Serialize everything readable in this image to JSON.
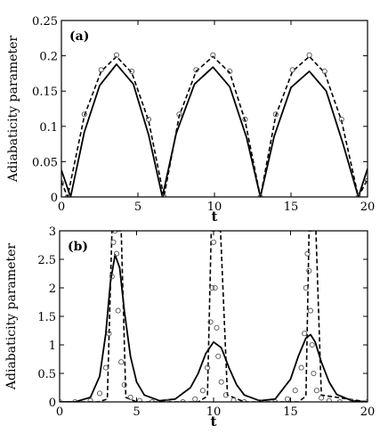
{
  "chart_data": [
    {
      "type": "line",
      "panel_label": "(a)",
      "xlabel": "t",
      "ylabel": "Adiabaticity parameter",
      "xlim": [
        0,
        20
      ],
      "ylim": [
        0,
        0.25
      ],
      "xticks": [
        0,
        5,
        10,
        15,
        20
      ],
      "yticks": [
        0,
        0.05,
        0.1,
        0.15,
        0.2,
        0.25
      ],
      "ytick_labels": [
        "0",
        "0.05",
        "0.1",
        "0.15",
        "0.2",
        "0.25"
      ],
      "grid": false,
      "series": [
        {
          "style": "solid",
          "x": [
            0,
            0.6,
            1.5,
            2.5,
            3.6,
            4.7,
            5.7,
            6.6,
            7.5,
            8.7,
            9.9,
            11.0,
            12.1,
            13.0,
            13.9,
            15.0,
            16.2,
            17.3,
            18.4,
            19.4,
            20.0
          ],
          "y": [
            0.038,
            0.0,
            0.092,
            0.158,
            0.188,
            0.16,
            0.088,
            0.0,
            0.09,
            0.16,
            0.184,
            0.156,
            0.084,
            0.0,
            0.086,
            0.155,
            0.178,
            0.15,
            0.075,
            0.0,
            0.04
          ]
        },
        {
          "style": "dashed",
          "x": [
            0,
            0.4,
            1.5,
            2.6,
            3.6,
            4.6,
            5.7,
            6.7,
            7.7,
            8.8,
            9.9,
            11.0,
            12.0,
            13.0,
            14.0,
            15.1,
            16.2,
            17.2,
            18.3,
            19.4,
            20.0
          ],
          "y": [
            0.022,
            0.0,
            0.115,
            0.178,
            0.199,
            0.176,
            0.108,
            0.0,
            0.115,
            0.178,
            0.199,
            0.176,
            0.108,
            0.0,
            0.115,
            0.178,
            0.199,
            0.176,
            0.108,
            0.0,
            0.025
          ]
        },
        {
          "style": "circles",
          "x": [
            0,
            0.4,
            1.5,
            2.6,
            3.6,
            4.6,
            5.7,
            6.7,
            7.7,
            8.8,
            9.9,
            11.0,
            12.0,
            13.0,
            14.0,
            15.1,
            16.2,
            17.2,
            18.3,
            19.4,
            20.0
          ],
          "y": [
            0.02,
            0.0,
            0.117,
            0.18,
            0.201,
            0.178,
            0.11,
            0.0,
            0.117,
            0.18,
            0.201,
            0.178,
            0.11,
            0.0,
            0.117,
            0.18,
            0.201,
            0.178,
            0.11,
            0.0,
            0.023
          ]
        }
      ]
    },
    {
      "type": "line",
      "panel_label": "(b)",
      "xlabel": "t",
      "ylabel": "Adiabaticity parameter",
      "xlim": [
        0,
        20
      ],
      "ylim": [
        0,
        3
      ],
      "xticks": [
        0,
        5,
        10,
        15,
        20
      ],
      "yticks": [
        0,
        0.5,
        1,
        1.5,
        2,
        2.5,
        3
      ],
      "ytick_labels": [
        "0",
        "0.5",
        "1",
        "1.5",
        "2",
        "2.5",
        "3"
      ],
      "grid": false,
      "series": [
        {
          "style": "solid",
          "x": [
            0,
            1.0,
            2.0,
            2.6,
            3.0,
            3.3,
            3.6,
            3.9,
            4.2,
            4.6,
            5.0,
            5.5,
            6.5,
            7.5,
            8.5,
            9.0,
            9.5,
            10.0,
            10.5,
            11.0,
            11.5,
            12.0,
            13.0,
            14.0,
            15.0,
            15.5,
            16.0,
            16.3,
            16.6,
            17.0,
            17.5,
            18.0,
            19.0,
            20.0
          ],
          "y": [
            0,
            0.0,
            0.08,
            0.45,
            1.2,
            2.1,
            2.58,
            2.35,
            1.6,
            0.8,
            0.35,
            0.12,
            0.02,
            0.05,
            0.25,
            0.5,
            0.85,
            1.05,
            0.95,
            0.6,
            0.3,
            0.12,
            0.02,
            0.05,
            0.4,
            0.8,
            1.12,
            1.18,
            1.05,
            0.7,
            0.35,
            0.13,
            0.02,
            0.0
          ]
        },
        {
          "style": "dashed",
          "x": [
            0,
            2.5,
            3.1,
            3.4,
            3.55,
            3.7,
            3.85,
            4.0,
            4.3,
            5.0,
            9.0,
            9.6,
            9.85,
            10.0,
            10.15,
            10.3,
            10.45,
            10.9,
            12.0,
            15.5,
            16.0,
            16.2,
            16.3,
            16.4,
            16.5,
            16.65,
            17.0,
            20.0
          ],
          "y": [
            0,
            0.0,
            0.05,
            3.0,
            3.0,
            3.0,
            3.0,
            3.0,
            0.08,
            0.0,
            0.0,
            0.1,
            3.0,
            3.0,
            3.0,
            3.0,
            3.0,
            0.12,
            0.0,
            0.0,
            0.1,
            3.0,
            3.0,
            3.0,
            3.0,
            3.0,
            0.12,
            0.0
          ]
        },
        {
          "style": "circles",
          "x": [
            0,
            1,
            2,
            2.6,
            3.0,
            3.2,
            3.4,
            3.5,
            3.6,
            3.7,
            3.8,
            4.0,
            4.2,
            4.6,
            5.2,
            6,
            7,
            8,
            8.8,
            9.3,
            9.6,
            9.8,
            9.9,
            10.0,
            10.1,
            10.2,
            10.3,
            10.5,
            10.8,
            11.3,
            12,
            13,
            14,
            14.8,
            15.3,
            15.7,
            15.9,
            16.0,
            16.1,
            16.2,
            16.3,
            16.4,
            16.5,
            16.7,
            17.0,
            17.5,
            18.2,
            19,
            20
          ],
          "y": [
            0,
            0,
            0.02,
            0.15,
            0.6,
            1.2,
            2.2,
            2.8,
            3.0,
            2.6,
            1.6,
            0.7,
            0.3,
            0.08,
            0.02,
            0,
            0,
            0,
            0.05,
            0.2,
            0.6,
            1.4,
            2.0,
            2.8,
            2.0,
            1.3,
            0.8,
            0.35,
            0.12,
            0.03,
            0,
            0,
            0,
            0.05,
            0.2,
            0.6,
            1.2,
            2.0,
            2.6,
            2.3,
            1.6,
            1.0,
            0.5,
            0.2,
            0.07,
            0.02,
            0,
            0,
            0
          ]
        }
      ]
    }
  ]
}
